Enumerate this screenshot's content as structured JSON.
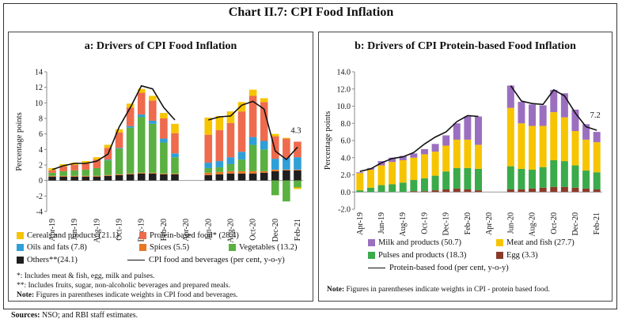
{
  "title": "Chart II.7: CPI Food Inflation",
  "sources_label": "Sources:",
  "sources_text": "NSO; and RBI staff estimates.",
  "chart_data": [
    {
      "type": "bar",
      "stacked": true,
      "title": "a: Drivers of CPI Food Inflation",
      "ylabel": "Percentage points",
      "ylim": [
        -4,
        14
      ],
      "yticks": [
        -4,
        -2,
        0,
        2,
        4,
        6,
        8,
        10,
        12,
        14
      ],
      "x_tick_labels": [
        "Apr-19",
        "Jun-19",
        "Aug-19",
        "Oct-19",
        "Dec-19",
        "Feb-20",
        "Apr-20",
        "Jun-20",
        "Aug-20",
        "Oct-20",
        "Dec-20",
        "Feb-21"
      ],
      "categories": [
        "Apr-19",
        "May-19",
        "Jun-19",
        "Jul-19",
        "Aug-19",
        "Sep-19",
        "Oct-19",
        "Nov-19",
        "Dec-19",
        "Jan-20",
        "Feb-20",
        "Mar-20",
        "Apr-20",
        "May-20",
        "Jun-20",
        "Jul-20",
        "Aug-20",
        "Sep-20",
        "Oct-20",
        "Nov-20",
        "Dec-20",
        "Jan-21",
        "Feb-21"
      ],
      "series": [
        {
          "name": "Others**(24.1)",
          "color": "#1f1f1f",
          "values": [
            0.5,
            0.5,
            0.5,
            0.5,
            0.5,
            0.6,
            0.7,
            0.8,
            0.9,
            0.9,
            0.8,
            0.8,
            null,
            null,
            0.7,
            0.8,
            0.9,
            0.9,
            0.9,
            1.0,
            1.2,
            1.3,
            1.3
          ]
        },
        {
          "name": "Spices (5.5)",
          "color": "#e87722",
          "values": [
            0.1,
            0.1,
            0.1,
            0.1,
            0.1,
            0.1,
            0.1,
            0.1,
            0.1,
            0.1,
            0.1,
            0.1,
            null,
            null,
            0.3,
            0.3,
            0.3,
            0.3,
            0.3,
            0.2,
            0.2,
            0.1,
            0.1
          ]
        },
        {
          "name": "Vegetables (13.2)",
          "color": "#5ab041",
          "values": [
            0.4,
            0.6,
            0.7,
            0.8,
            1.0,
            1.9,
            3.3,
            5.9,
            7.2,
            6.3,
            4.0,
            2.1,
            null,
            null,
            0.6,
            0.6,
            0.9,
            1.5,
            3.4,
            2.8,
            -1.9,
            -2.7,
            -0.9
          ]
        },
        {
          "name": "Oils and fats (7.8)",
          "color": "#2f9fd8",
          "values": [
            0.0,
            0.0,
            0.0,
            0.0,
            0.0,
            0.1,
            0.1,
            0.2,
            0.3,
            0.4,
            0.5,
            0.5,
            null,
            null,
            0.7,
            0.8,
            0.9,
            1.0,
            1.0,
            1.1,
            1.4,
            1.5,
            1.6
          ]
        },
        {
          "name": "Protein-based food* (28.4)",
          "color": "#ee6b4d",
          "values": [
            0.3,
            0.6,
            0.7,
            0.8,
            1.1,
            1.5,
            2.0,
            2.4,
            2.8,
            2.6,
            2.6,
            2.6,
            null,
            null,
            3.6,
            4.0,
            4.4,
            5.2,
            5.3,
            5.0,
            2.9,
            2.5,
            2.0
          ]
        },
        {
          "name": "Cereals and products (21.1)",
          "color": "#f7c400",
          "values": [
            0.3,
            0.3,
            0.3,
            0.3,
            0.3,
            0.4,
            0.4,
            0.5,
            0.5,
            0.6,
            0.7,
            1.2,
            null,
            null,
            2.2,
            1.8,
            1.5,
            1.2,
            0.8,
            0.5,
            0.3,
            0.1,
            -0.2
          ]
        }
      ],
      "line": {
        "name": "CPI food and beverages (per cent, y-o-y)",
        "color": "#111111",
        "values": [
          1.4,
          1.9,
          2.2,
          2.2,
          2.5,
          3.4,
          6.9,
          9.4,
          12.2,
          11.8,
          9.4,
          7.8,
          null,
          null,
          7.8,
          8.2,
          8.3,
          9.7,
          10.2,
          9.2,
          3.8,
          2.7,
          4.3
        ]
      },
      "annotations": [
        {
          "text": "4.3",
          "at": "Feb-21"
        }
      ],
      "legend": [
        "Cereals and products (21.1)",
        "Protein-based food* (28.4)",
        "Oils and fats (7.8)",
        "Spices (5.5)",
        "Vegetables (13.2)",
        "Others**(24.1)",
        "CPI food and beverages (per cent, y-o-y)"
      ],
      "notes": {
        "n1": "*: Includes meat & fish, egg, milk and pulses.",
        "n2": "**: Includes fruits, sugar, non-alcoholic beverages and prepared meals.",
        "n3_label": "Note:",
        "n3": "Figures in parentheses indicate weights in CPI food and beverages."
      }
    },
    {
      "type": "bar",
      "stacked": true,
      "title": "b: Drivers of CPI Protein-based Food Inflation",
      "ylabel": "Percentage points",
      "ylim": [
        -2,
        14
      ],
      "yticks": [
        -2.0,
        0.0,
        2.0,
        4.0,
        6.0,
        8.0,
        10.0,
        12.0,
        14.0
      ],
      "ytick_labels": [
        "-2.0",
        "0.0",
        "2.0",
        "4.0",
        "6.0",
        "8.0",
        "10.0",
        "12.0",
        "14.0"
      ],
      "x_tick_labels": [
        "Apr-19",
        "Jun-19",
        "Aug-19",
        "Oct-19",
        "Dec-19",
        "Feb-20",
        "Apr-20",
        "Jun-20",
        "Aug-20",
        "Oct-20",
        "Dec-20",
        "Feb-21"
      ],
      "categories": [
        "Apr-19",
        "May-19",
        "Jun-19",
        "Jul-19",
        "Aug-19",
        "Sep-19",
        "Oct-19",
        "Nov-19",
        "Dec-19",
        "Jan-20",
        "Feb-20",
        "Mar-20",
        "Apr-20",
        "May-20",
        "Jun-20",
        "Jul-20",
        "Aug-20",
        "Sep-20",
        "Oct-20",
        "Nov-20",
        "Dec-20",
        "Jan-21",
        "Feb-21"
      ],
      "series": [
        {
          "name": "Egg (3.3)",
          "color": "#8b3a2a",
          "values": [
            0.0,
            0.0,
            0.0,
            0.0,
            0.0,
            0.1,
            0.1,
            0.2,
            0.3,
            0.4,
            0.3,
            0.2,
            null,
            null,
            0.3,
            0.3,
            0.4,
            0.5,
            0.6,
            0.6,
            0.5,
            0.4,
            0.3
          ]
        },
        {
          "name": "Pulses and products (18.3)",
          "color": "#3aaa4a",
          "values": [
            0.2,
            0.5,
            0.8,
            0.9,
            1.1,
            1.3,
            1.5,
            1.7,
            2.1,
            2.4,
            2.5,
            2.5,
            null,
            null,
            2.7,
            2.4,
            2.2,
            2.4,
            3.1,
            3.0,
            2.6,
            2.1,
            2.0
          ]
        },
        {
          "name": "Meat and fish (27.7)",
          "color": "#f7c400",
          "values": [
            2.0,
            2.1,
            2.3,
            2.6,
            2.6,
            2.6,
            2.8,
            2.8,
            3.0,
            3.3,
            3.3,
            2.8,
            null,
            null,
            6.8,
            5.3,
            5.1,
            4.8,
            5.6,
            5.1,
            4.0,
            3.6,
            3.5
          ]
        },
        {
          "name": "Milk and products (50.7)",
          "color": "#9b6fc0",
          "values": [
            0.1,
            0.2,
            0.5,
            0.5,
            0.5,
            0.5,
            0.6,
            0.9,
            1.2,
            1.9,
            2.7,
            3.3,
            null,
            null,
            2.6,
            2.5,
            2.5,
            2.4,
            2.6,
            2.8,
            2.5,
            1.8,
            1.2
          ]
        }
      ],
      "line": {
        "name": "Protein-based food (per cent, y-o-y)",
        "color": "#111111",
        "values": [
          2.4,
          2.7,
          3.4,
          3.9,
          4.1,
          4.6,
          5.6,
          6.4,
          7.0,
          8.2,
          8.9,
          8.8,
          null,
          null,
          12.4,
          10.6,
          10.3,
          10.2,
          11.9,
          11.2,
          9.2,
          7.6,
          7.2
        ]
      },
      "annotations": [
        {
          "text": "7.2",
          "at": "Feb-21"
        }
      ],
      "legend": [
        "Milk and products (50.7)",
        "Meat and fish (27.7)",
        "Pulses and products (18.3)",
        "Egg (3.3)",
        "Protein-based food (per cent, y-o-y)"
      ],
      "notes": {
        "n1_label": "Note:",
        "n1": "Figures in parentheses indicate weights in CPI - protein based food."
      }
    }
  ]
}
